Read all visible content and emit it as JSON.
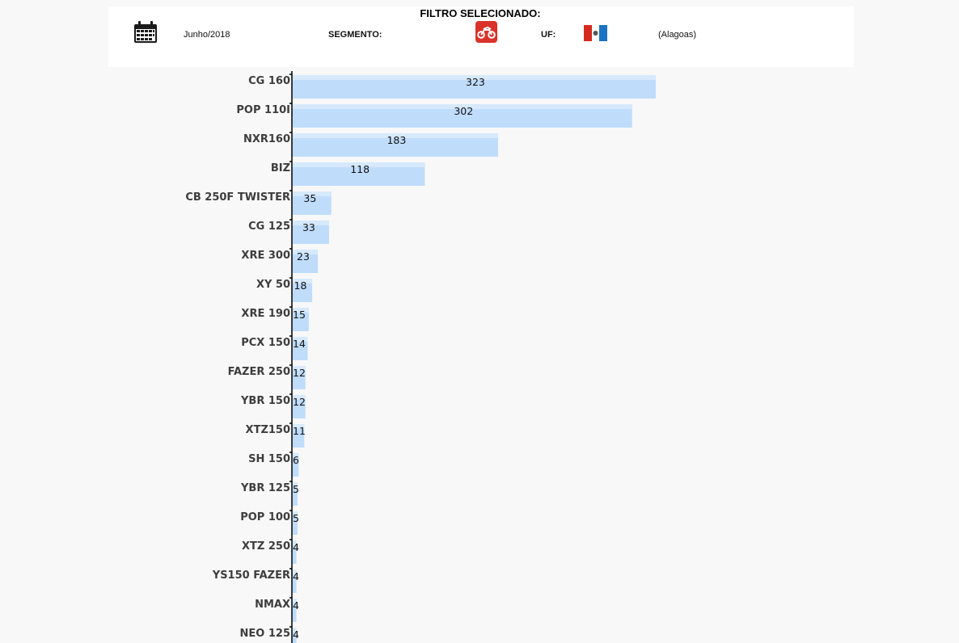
{
  "filter": {
    "title": "FILTRO SELECIONADO:",
    "period": "Junho/2018",
    "segment_label": "SEGMENTO:",
    "uf_label": "UF:",
    "state": "(Alagoas)",
    "segment_icon": "motorcycle-icon",
    "period_icon": "calendar-icon",
    "uf_icon": "alagoas-flag-icon",
    "segment_icon_color": "#d9322b"
  },
  "chart_data": {
    "type": "bar",
    "orientation": "horizontal",
    "categories": [
      "CG 160",
      "POP 110I",
      "NXR160",
      "BIZ",
      "CB 250F TWISTER",
      "CG 125",
      "XRE 300",
      "XY 50",
      "XRE 190",
      "PCX 150",
      "FAZER 250",
      "YBR 150",
      "XTZ150",
      "SH 150",
      "YBR 125",
      "POP 100",
      "XTZ 250",
      "YS150 FAZER",
      "NMAX",
      "NEO 125"
    ],
    "values": [
      323,
      302,
      183,
      118,
      35,
      33,
      23,
      18,
      15,
      14,
      12,
      12,
      11,
      6,
      5,
      5,
      4,
      4,
      4,
      4
    ],
    "xlim": [
      0,
      323
    ],
    "bar_color": "#bfdcfb",
    "bar_highlight_color": "#d6e9fd",
    "grid": false,
    "legend": "none"
  }
}
